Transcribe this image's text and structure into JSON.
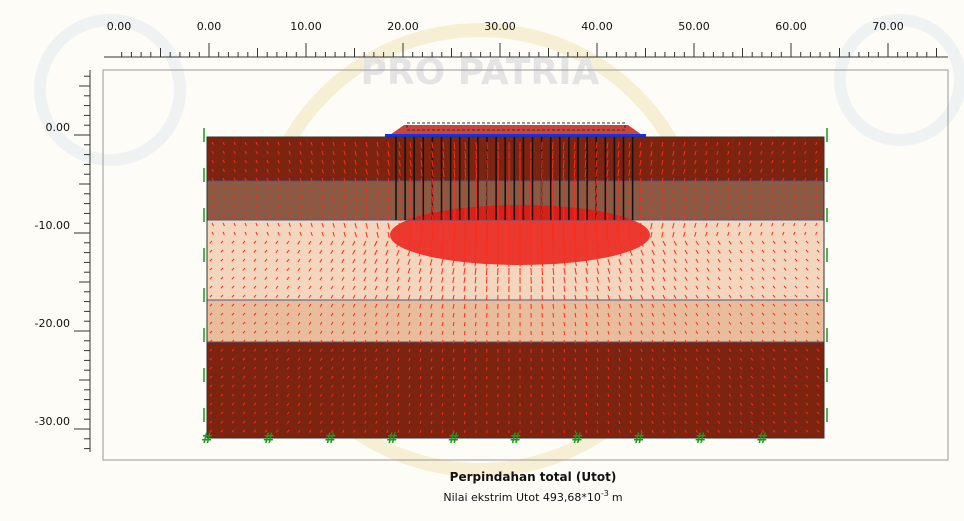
{
  "watermark": "PRO PATRIA",
  "top_ruler": {
    "labels": [
      "0.00",
      "0.00",
      "10.00",
      "20.00",
      "30.00",
      "40.00",
      "50.00",
      "60.00",
      "70.00"
    ]
  },
  "left_ruler": {
    "labels": [
      "0.00",
      "-10.00",
      "-20.00",
      "-30.00"
    ]
  },
  "caption": {
    "title": "Perpindahan total (Utot)",
    "subtitle_prefix": "Nilai ekstrim Utot 493,68*10",
    "subtitle_exponent": "-3",
    "subtitle_unit": "m"
  }
}
